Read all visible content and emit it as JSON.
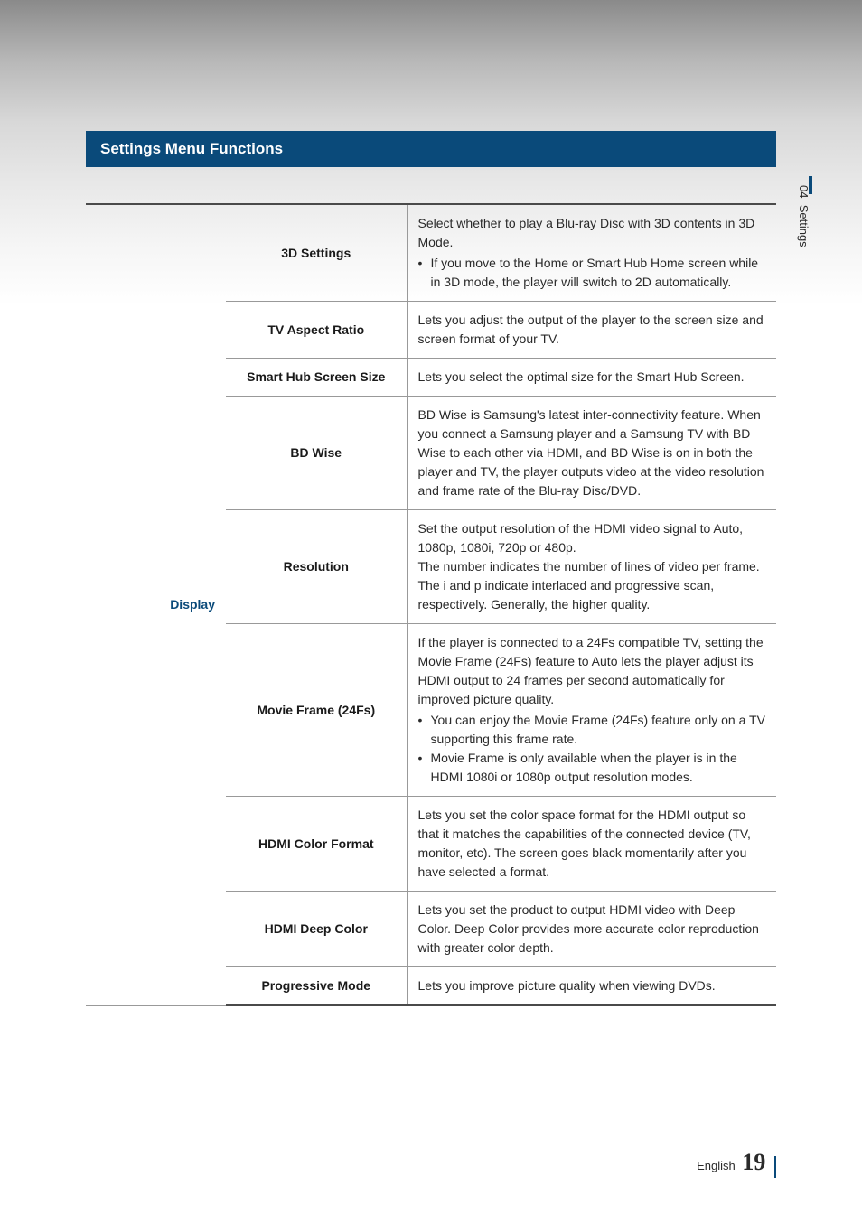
{
  "section_header": "Settings Menu Functions",
  "side_tab": {
    "number": "04",
    "label": "Settings"
  },
  "category": "Display",
  "rows": [
    {
      "label": "3D Settings",
      "description": "Select whether to play a Blu-ray Disc with 3D contents in 3D Mode.",
      "bullets": [
        "If you move to the Home or Smart Hub Home screen while in 3D mode, the player will switch to 2D automatically."
      ]
    },
    {
      "label": "TV Aspect Ratio",
      "description": "Lets you adjust the output of the player to the screen size and screen format of your TV."
    },
    {
      "label": "Smart Hub Screen Size",
      "description": "Lets you select the optimal size for the Smart Hub Screen."
    },
    {
      "label": "BD Wise",
      "description": "BD Wise is Samsung's latest inter-connectivity feature. When you connect a Samsung player and a Samsung TV with BD Wise to each other via HDMI, and BD Wise is on in both the player and TV, the player outputs video at the video resolution and frame rate of the Blu-ray Disc/DVD."
    },
    {
      "label": "Resolution",
      "description": "Set the output resolution of the HDMI video signal to Auto, 1080p, 1080i, 720p or 480p.\nThe number indicates the number of lines of video per frame.\nThe i and p indicate interlaced and progressive scan, respectively. Generally, the higher quality."
    },
    {
      "label": "Movie Frame (24Fs)",
      "description": "If the player is connected to a 24Fs compatible TV, setting the Movie Frame (24Fs) feature to Auto lets the player adjust its HDMI output to 24 frames per second automatically for improved picture quality.",
      "bullets": [
        "You can enjoy the Movie Frame (24Fs) feature only on a TV supporting this frame rate.",
        "Movie Frame is only available when the player is in the HDMI 1080i or 1080p output resolution modes."
      ]
    },
    {
      "label": "HDMI Color Format",
      "description": "Lets you set the color space format for the HDMI output so that it matches the capabilities of the connected device (TV, monitor, etc). The screen goes black momentarily after you have selected a format."
    },
    {
      "label": "HDMI Deep Color",
      "description": "Lets you set the product to output HDMI video with Deep Color. Deep Color provides more accurate color reproduction with greater color depth."
    },
    {
      "label": "Progressive Mode",
      "description": "Lets you improve picture quality when viewing DVDs."
    }
  ],
  "footer": {
    "language": "English",
    "page_number": "19"
  },
  "colors": {
    "header_bg": "#0a4a7a",
    "header_text": "#ffffff",
    "category_text": "#0a4a7a",
    "body_text": "#2a2a2a",
    "border": "#999999",
    "outer_border": "#4a4a4a"
  }
}
